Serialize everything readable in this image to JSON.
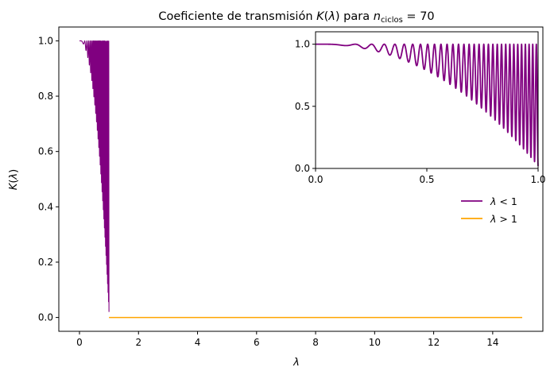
{
  "chart_data": [
    {
      "type": "line",
      "title": "Coeficiente de transmisión K(λ) para n_ciclos = 70",
      "title_parts": {
        "prefix": "Coeficiente de transmisión ",
        "k": "K",
        "lambda": "λ",
        "mid": " para ",
        "n": "n",
        "sub": "ciclos",
        "eq": " = 70"
      },
      "xlabel": "λ",
      "ylabel": "K(λ)",
      "xlim": [
        -0.7,
        15.7
      ],
      "ylim": [
        -0.05,
        1.05
      ],
      "xticks": [
        "0",
        "2",
        "4",
        "6",
        "8",
        "10",
        "12",
        "14"
      ],
      "yticks": [
        "0.0",
        "0.2",
        "0.4",
        "0.6",
        "0.8",
        "1.0"
      ],
      "legend_position": "center-right",
      "n_cycles": 70,
      "series": [
        {
          "name": "λ < 1",
          "color": "#800080",
          "x_range": [
            0,
            1
          ],
          "description_points": [
            [
              0,
              1.0
            ],
            [
              0.3,
              0.995
            ],
            [
              0.5,
              0.97
            ],
            [
              0.7,
              0.8
            ],
            [
              0.9,
              0.4
            ],
            [
              1.0,
              0.02
            ]
          ]
        },
        {
          "name": "λ > 1",
          "color": "#FFA500",
          "x": [
            1,
            15
          ],
          "y": [
            0,
            0
          ]
        }
      ]
    },
    {
      "type": "line",
      "title": "",
      "xlim": [
        0,
        1
      ],
      "ylim": [
        0,
        1.1
      ],
      "xticks": [
        "0.0",
        "0.5",
        "1.0"
      ],
      "yticks": [
        "0.0",
        "0.5",
        "1.0"
      ],
      "series": [
        {
          "name": "λ < 1",
          "color": "#800080",
          "x_range": [
            0,
            1
          ]
        }
      ]
    }
  ],
  "legend": {
    "items": [
      {
        "label_var": "λ",
        "label_op": " < 1",
        "color": "#800080"
      },
      {
        "label_var": "λ",
        "label_op": " > 1",
        "color": "#FFA500"
      }
    ]
  }
}
